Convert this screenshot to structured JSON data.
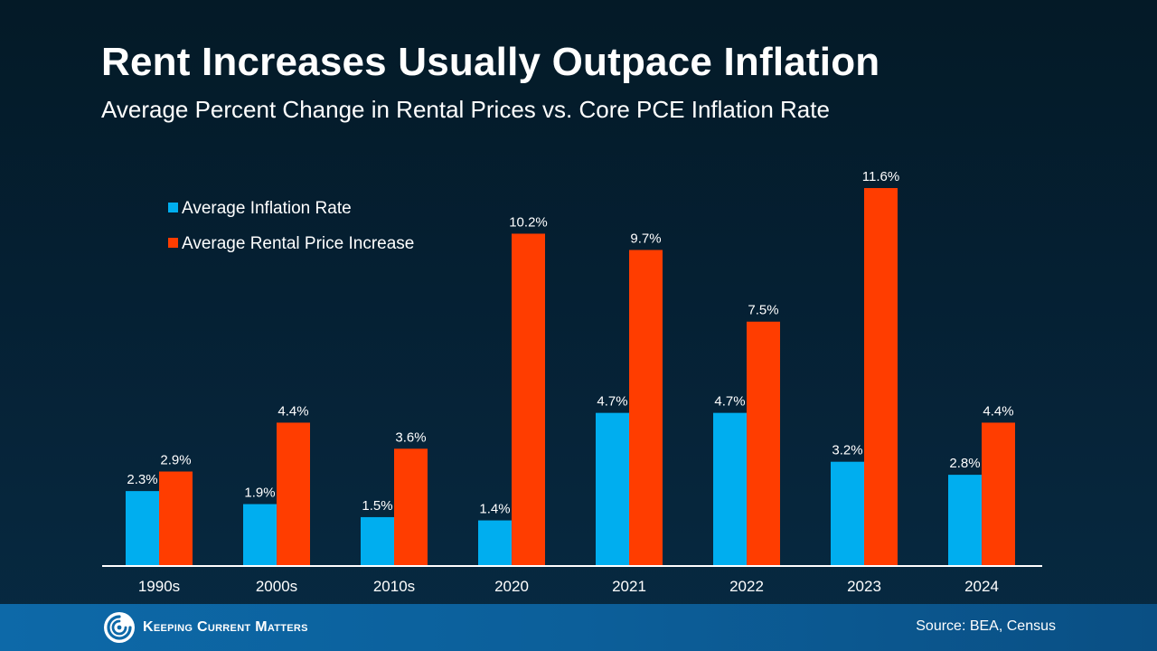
{
  "title": "Rent Increases Usually Outpace Inflation",
  "subtitle": "Average Percent Change in Rental Prices vs. Core PCE Inflation Rate",
  "chart_data": {
    "type": "bar",
    "categories": [
      "1990s",
      "2000s",
      "2010s",
      "2020",
      "2021",
      "2022",
      "2023",
      "2024"
    ],
    "series": [
      {
        "name": "Average Inflation Rate",
        "color": "#00aeef",
        "values": [
          2.3,
          1.9,
          1.5,
          1.4,
          4.7,
          4.7,
          3.2,
          2.8
        ],
        "labels": [
          "2.3%",
          "1.9%",
          "1.5%",
          "1.4%",
          "4.7%",
          "4.7%",
          "3.2%",
          "2.8%"
        ]
      },
      {
        "name": "Average Rental Price Increase",
        "color": "#ff3d00",
        "values": [
          2.9,
          4.4,
          3.6,
          10.2,
          9.7,
          7.5,
          11.6,
          4.4
        ],
        "labels": [
          "2.9%",
          "4.4%",
          "3.6%",
          "10.2%",
          "9.7%",
          "7.5%",
          "11.6%",
          "4.4%"
        ]
      }
    ],
    "ylim": [
      0,
      11.6
    ],
    "grid": false,
    "legend": "top-left"
  },
  "footer": {
    "logo_text": "Keeping Current Matters",
    "source": "Source: BEA, Census"
  }
}
